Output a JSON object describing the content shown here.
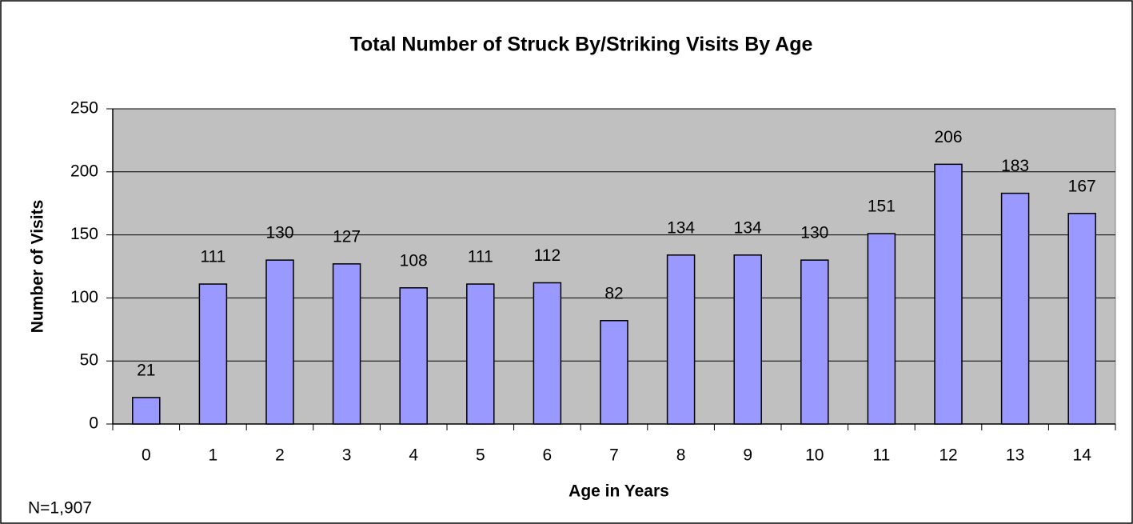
{
  "chart_data": {
    "type": "bar",
    "title": "Total Number of Struck By/Striking Visits By Age",
    "xlabel": "Age in Years",
    "ylabel": "Number of Visits",
    "annotation": "N=1,907",
    "categories": [
      "0",
      "1",
      "2",
      "3",
      "4",
      "5",
      "6",
      "7",
      "8",
      "9",
      "10",
      "11",
      "12",
      "13",
      "14"
    ],
    "values": [
      21,
      111,
      130,
      127,
      108,
      111,
      112,
      82,
      134,
      134,
      130,
      151,
      206,
      183,
      167
    ],
    "color": "#9999ff",
    "ylim": [
      0,
      250
    ],
    "yticks": [
      0,
      50,
      100,
      150,
      200,
      250
    ],
    "grid": true
  }
}
